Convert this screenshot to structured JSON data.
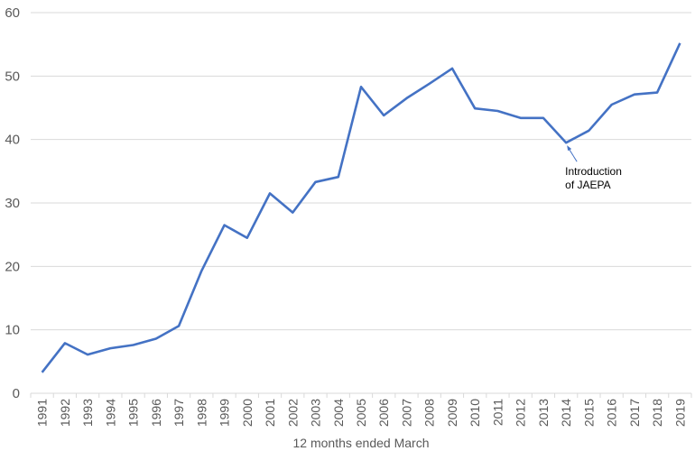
{
  "chart_data": {
    "type": "line",
    "title": "",
    "xlabel": "12 months ended March",
    "ylabel": "",
    "ylim": [
      0,
      60
    ],
    "yticks": [
      0,
      10,
      20,
      30,
      40,
      50,
      60
    ],
    "grid": true,
    "legend": "none",
    "categories": [
      "1991",
      "1992",
      "1993",
      "1994",
      "1995",
      "1996",
      "1997",
      "1998",
      "1999",
      "2000",
      "2001",
      "2002",
      "2003",
      "2004",
      "2005",
      "2006",
      "2007",
      "2008",
      "2009",
      "2010",
      "2011",
      "2012",
      "2013",
      "2014",
      "2015",
      "2016",
      "2017",
      "2018",
      "2019"
    ],
    "series": [
      {
        "color": "#4472c4",
        "values": [
          3.3,
          7.9,
          6.1,
          7.1,
          7.6,
          8.6,
          10.6,
          19.3,
          26.5,
          24.5,
          31.5,
          28.5,
          33.3,
          34.1,
          48.3,
          43.8,
          46.5,
          48.8,
          51.2,
          44.9,
          44.5,
          43.4,
          43.4,
          39.5,
          41.4,
          45.5,
          47.1,
          47.4,
          55.2
        ]
      }
    ],
    "annotations": [
      {
        "text_lines": [
          "Introduction",
          "of JAEPA"
        ],
        "category": "2014",
        "value": 39.5
      }
    ]
  }
}
